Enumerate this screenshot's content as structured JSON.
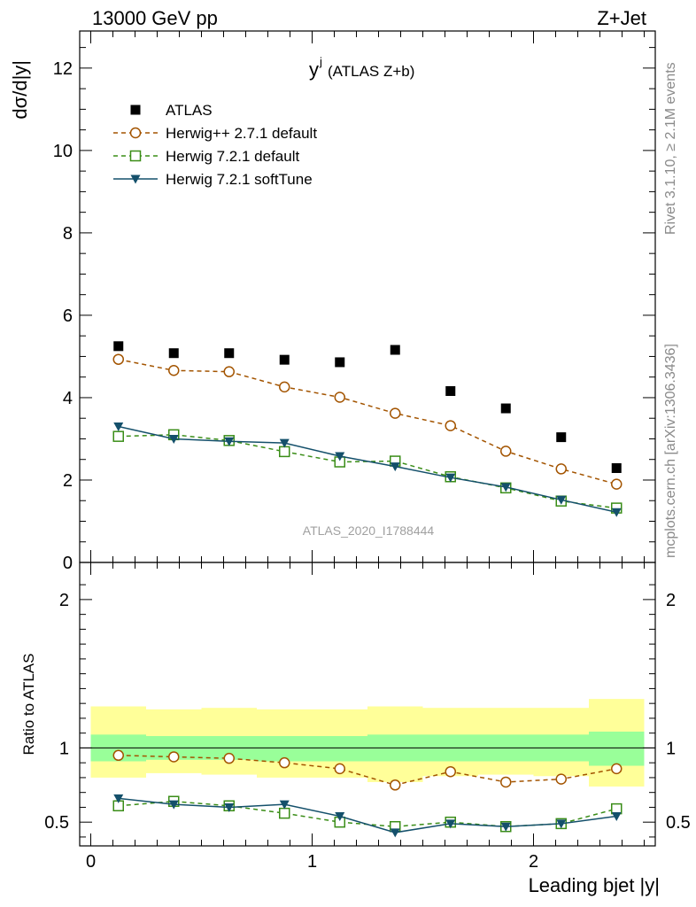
{
  "header": {
    "left": "13000 GeV pp",
    "right": "Z+Jet"
  },
  "side_texts": {
    "rivet": "Rivet 3.1.10, ≥ 2.1M events",
    "mcplots": "mcplots.cern.ch [arXiv:1306.3436]"
  },
  "chart_data": [
    {
      "type": "line",
      "title": "y",
      "title_sup": "j",
      "title_suffix": "(ATLAS Z+b)",
      "ylabel": "dσ/d|y|",
      "analysis_label": "ATLAS_2020_I1788444",
      "xlim": [
        -0.05,
        2.55
      ],
      "ylim": [
        0,
        12.9
      ],
      "yticks": [
        0,
        2,
        4,
        6,
        8,
        10,
        12
      ],
      "x": [
        0.125,
        0.375,
        0.625,
        0.875,
        1.125,
        1.375,
        1.625,
        1.875,
        2.125,
        2.375
      ],
      "legend_placement": "top-left",
      "series": [
        {
          "name": "ATLAS",
          "marker": "filled-square",
          "color": "#000000",
          "values": [
            5.25,
            5.08,
            5.08,
            4.92,
            4.86,
            5.16,
            4.16,
            3.74,
            3.04,
            2.29
          ]
        },
        {
          "name": "Herwig++ 2.7.1 default",
          "marker": "open-circle",
          "line": "dashed",
          "color": "#a35400",
          "values": [
            4.93,
            4.66,
            4.63,
            4.26,
            4.01,
            3.62,
            3.32,
            2.7,
            2.27,
            1.9
          ]
        },
        {
          "name": "Herwig 7.2.1 default",
          "marker": "open-square",
          "line": "dashed",
          "color": "#3a8d17",
          "values": [
            3.06,
            3.1,
            2.96,
            2.69,
            2.44,
            2.46,
            2.08,
            1.81,
            1.49,
            1.32
          ]
        },
        {
          "name": "Herwig 7.2.1 softTune",
          "marker": "filled-triangle-down",
          "line": "solid",
          "color": "#14506b",
          "values": [
            3.3,
            3.0,
            2.94,
            2.9,
            2.58,
            2.33,
            2.06,
            1.83,
            1.52,
            1.22
          ]
        }
      ]
    },
    {
      "type": "line",
      "ylabel": "Ratio to ATLAS",
      "xlabel": "Leading bjet |y|",
      "xlim": [
        -0.05,
        2.55
      ],
      "ylim": [
        0.34,
        2.25
      ],
      "yticks": [
        0.5,
        1,
        2
      ],
      "xticks": [
        0,
        1,
        2
      ],
      "reference_line": 1,
      "bin_edges": [
        0,
        0.25,
        0.5,
        0.75,
        1.0,
        1.25,
        1.5,
        1.75,
        2.0,
        2.25,
        2.5
      ],
      "bands": {
        "green_low": [
          0.91,
          0.92,
          0.92,
          0.91,
          0.91,
          0.91,
          0.91,
          0.91,
          0.91,
          0.88
        ],
        "green_high": [
          1.09,
          1.08,
          1.08,
          1.08,
          1.08,
          1.09,
          1.09,
          1.09,
          1.09,
          1.11
        ],
        "yellow_low": [
          0.8,
          0.83,
          0.82,
          0.8,
          0.8,
          0.77,
          0.81,
          0.82,
          0.81,
          0.74
        ],
        "yellow_high": [
          1.28,
          1.26,
          1.27,
          1.26,
          1.26,
          1.28,
          1.27,
          1.27,
          1.27,
          1.33
        ]
      },
      "x": [
        0.125,
        0.375,
        0.625,
        0.875,
        1.125,
        1.375,
        1.625,
        1.875,
        2.125,
        2.375
      ],
      "series": [
        {
          "name": "Herwig++ 2.7.1 default",
          "marker": "open-circle",
          "line": "dashed",
          "color": "#a35400",
          "values": [
            0.95,
            0.94,
            0.93,
            0.9,
            0.86,
            0.75,
            0.84,
            0.77,
            0.79,
            0.86
          ]
        },
        {
          "name": "Herwig 7.2.1 default",
          "marker": "open-square",
          "line": "dashed",
          "color": "#3a8d17",
          "values": [
            0.61,
            0.64,
            0.61,
            0.56,
            0.5,
            0.47,
            0.5,
            0.47,
            0.49,
            0.59
          ]
        },
        {
          "name": "Herwig 7.2.1 softTune",
          "marker": "filled-triangle-down",
          "line": "solid",
          "color": "#14506b",
          "values": [
            0.66,
            0.62,
            0.6,
            0.62,
            0.54,
            0.43,
            0.49,
            0.47,
            0.49,
            0.54
          ]
        }
      ]
    }
  ]
}
